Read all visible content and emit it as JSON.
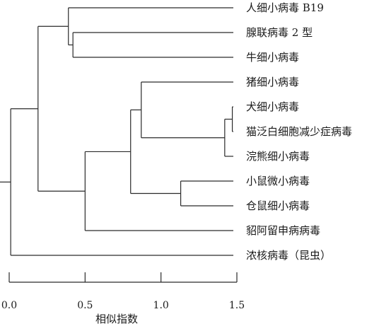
{
  "dendrogram": {
    "leaves": [
      "人细小病毒 B19",
      "腺联病毒 2 型",
      "牛细小病毒",
      "猪细小病毒",
      "犬细小病毒",
      "猫泛白细胞减少症病毒",
      "浣熊细小病毒",
      "小鼠微小病毒",
      "仓鼠细小病毒",
      "貂阿留申病病毒",
      "浓核病毒（昆虫）"
    ],
    "merges": [
      {
        "children": [
          "犬细小病毒",
          "猫泛白细胞减少症病毒"
        ],
        "similarity": 1.47
      },
      {
        "children": [
          "m0",
          "浣熊细小病毒"
        ],
        "similarity": 1.42
      },
      {
        "children": [
          "猪细小病毒",
          "m1"
        ],
        "similarity": 0.87
      },
      {
        "children": [
          "小鼠微小病毒",
          "仓鼠细小病毒"
        ],
        "similarity": 1.13
      },
      {
        "children": [
          "m2",
          "m3"
        ],
        "similarity": 0.8
      },
      {
        "children": [
          "m4",
          "貂阿留申病病毒"
        ],
        "similarity": 0.5
      },
      {
        "children": [
          "腺联病毒 2 型",
          "牛细小病毒"
        ],
        "similarity": 0.42
      },
      {
        "children": [
          "人细小病毒 B19",
          "m6"
        ],
        "similarity": 0.39
      },
      {
        "children": [
          "m7",
          "m5"
        ],
        "similarity": 0.19
      },
      {
        "children": [
          "m8",
          "浓核病毒（昆虫）"
        ],
        "similarity": 0.01
      }
    ]
  },
  "axis": {
    "title": "相似指数",
    "range": [
      0.0,
      1.5
    ],
    "ticks": [
      {
        "value": 0.0,
        "label": "0.0"
      },
      {
        "value": 0.5,
        "label": "0.5"
      },
      {
        "value": 1.0,
        "label": "1.0"
      },
      {
        "value": 1.5,
        "label": "1.5"
      }
    ]
  },
  "colors": {
    "line": "#2a2a2a",
    "text": "#1a1a1a",
    "background": "#ffffff"
  }
}
